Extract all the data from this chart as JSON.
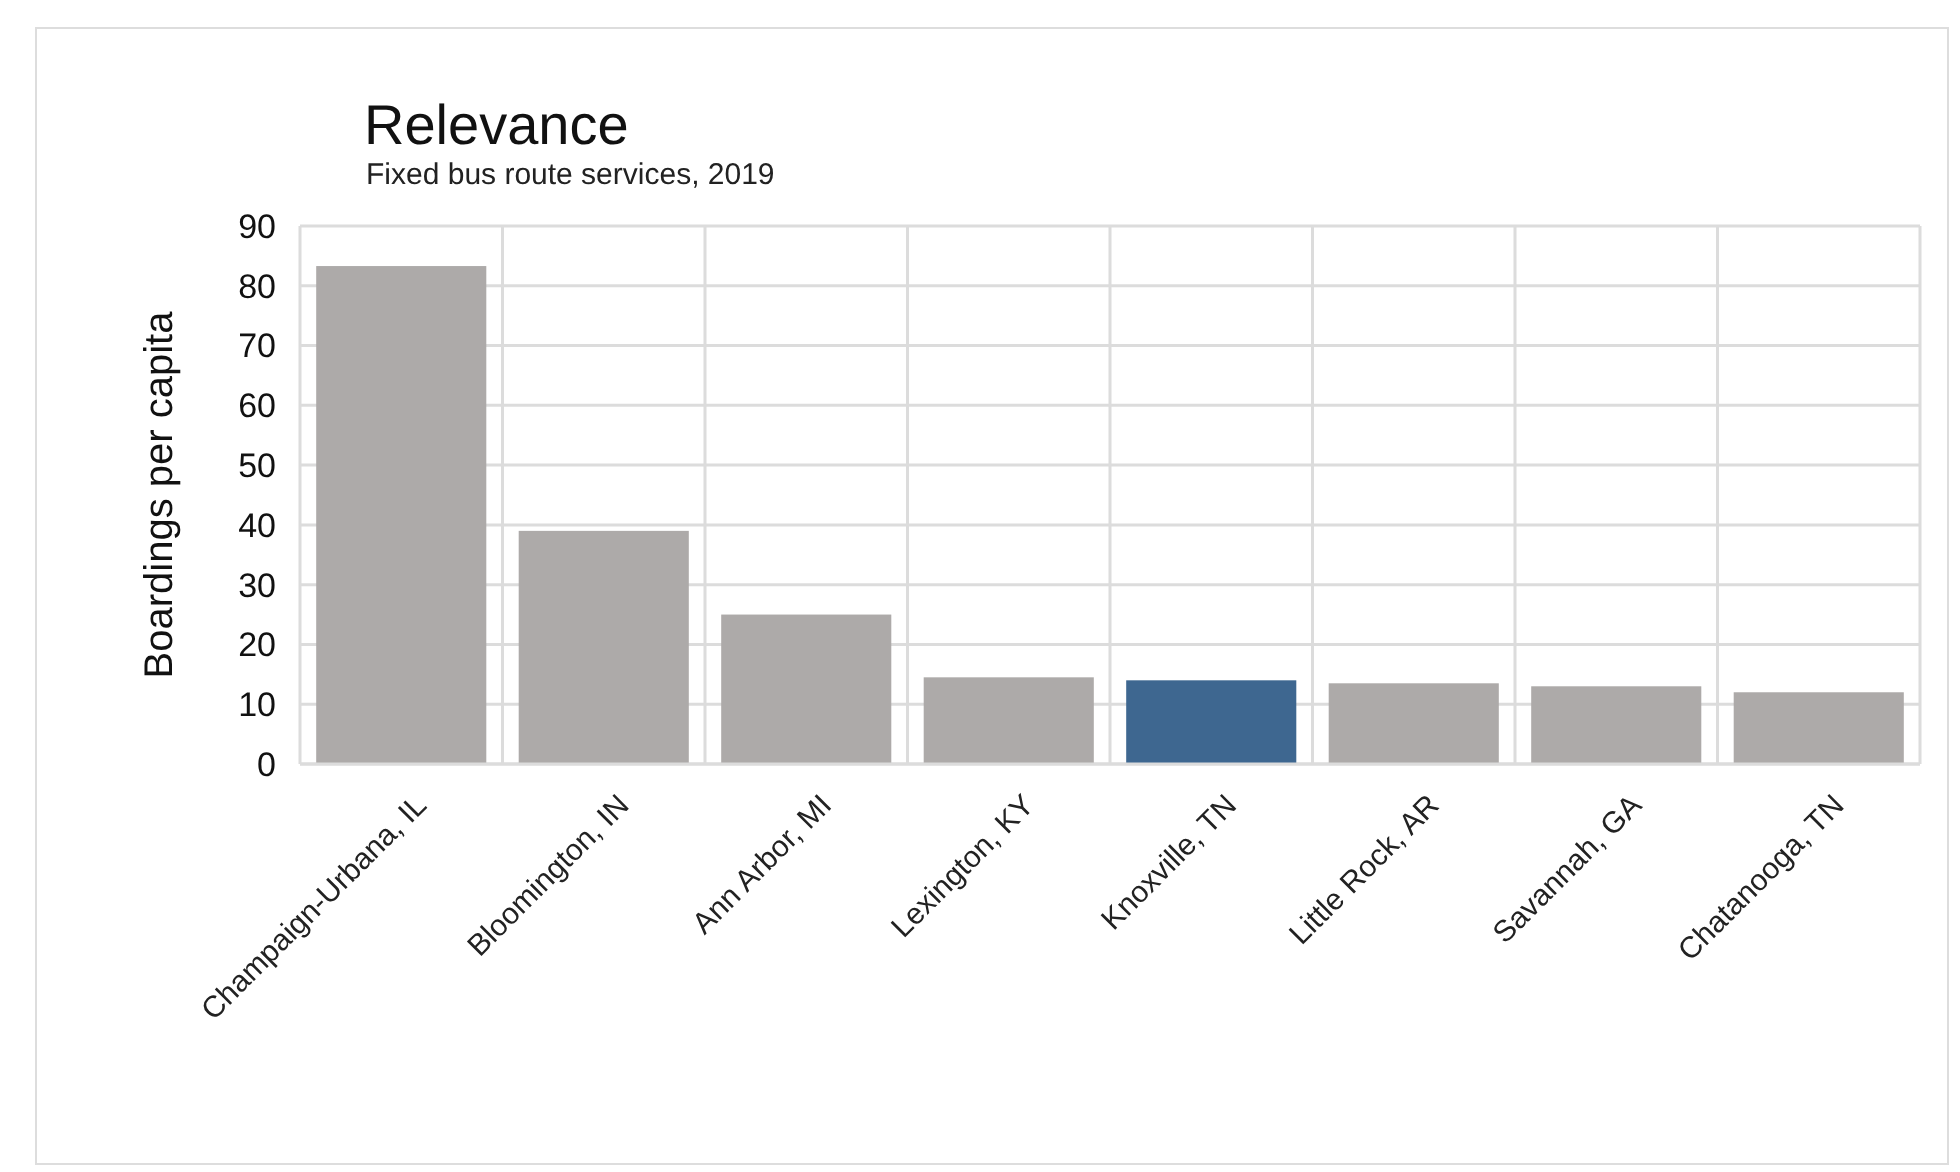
{
  "chart_data": {
    "type": "bar",
    "title": "Relevance",
    "subtitle": "Fixed bus route services, 2019",
    "ylabel": "Boardings per capita",
    "categories": [
      "Champaign-Urbana, IL",
      "Bloomington, IN",
      "Ann Arbor, MI",
      "Lexington, KY",
      "Knoxville, TN",
      "Little Rock, AR",
      "Savannah, GA",
      "Chatanooga, TN"
    ],
    "values": [
      83.3,
      39,
      25,
      14.5,
      14,
      13.5,
      13,
      12
    ],
    "colors": [
      "#adaaa9",
      "#adaaa9",
      "#adaaa9",
      "#adaaa9",
      "#3e6790",
      "#adaaa9",
      "#adaaa9",
      "#adaaa9"
    ],
    "ylim": [
      0,
      90
    ],
    "yticks": [
      0,
      10,
      20,
      30,
      40,
      50,
      60,
      70,
      80,
      90
    ],
    "grid": true
  }
}
